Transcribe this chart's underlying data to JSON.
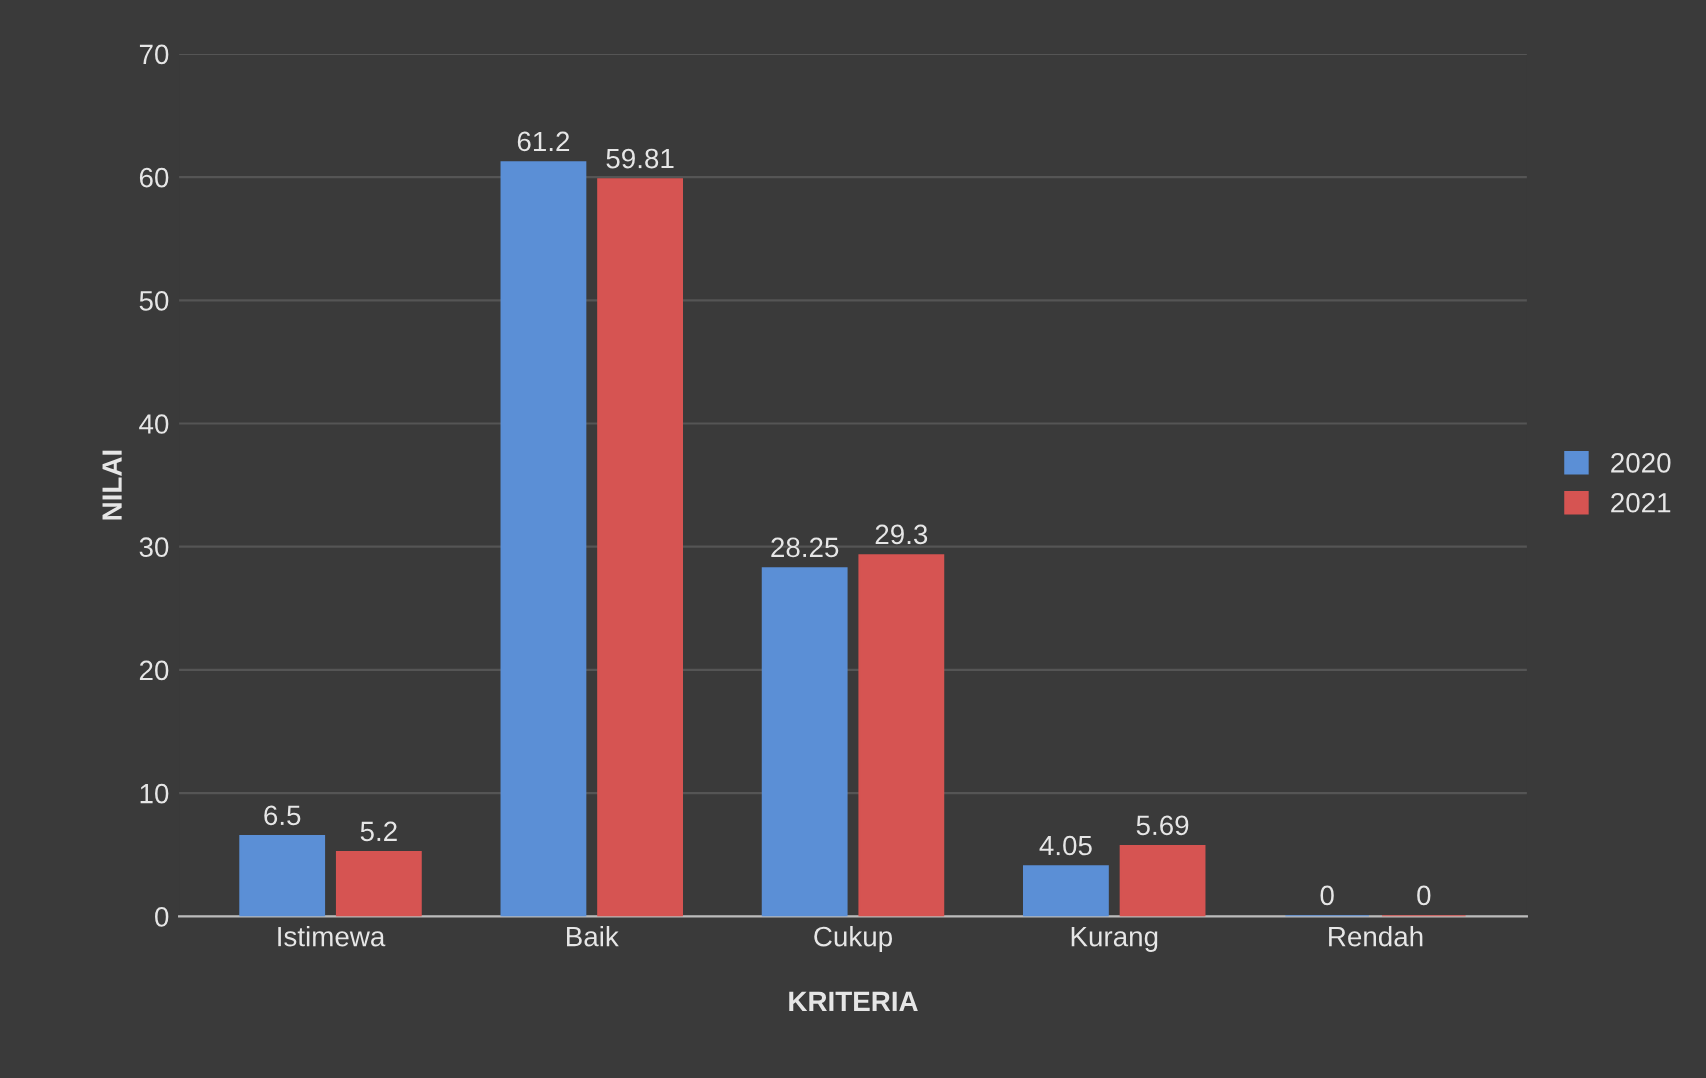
{
  "chart_data": {
    "type": "bar",
    "xlabel": "KRITERIA",
    "ylabel": "NILAI",
    "categories": [
      "Istimewa",
      "Baik",
      "Cukup",
      "Kurang",
      "Rendah"
    ],
    "series": [
      {
        "name": "2020",
        "color": "#5b8fd6",
        "values": [
          6.5,
          61.2,
          28.25,
          4.05,
          0
        ]
      },
      {
        "name": "2021",
        "color": "#d65452",
        "values": [
          5.2,
          59.81,
          29.3,
          5.69,
          0
        ]
      }
    ],
    "ylim": [
      0,
      70
    ],
    "yticks": [
      0,
      10,
      20,
      30,
      40,
      50,
      60,
      70
    ],
    "grid": "y",
    "legend": "right",
    "data_labels": true
  }
}
